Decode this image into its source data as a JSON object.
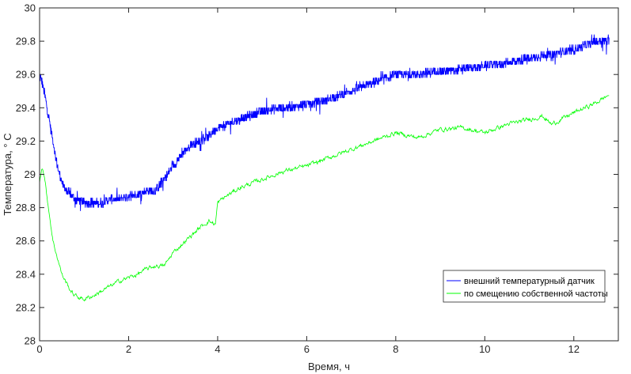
{
  "chart_data": {
    "type": "line",
    "xlabel": "Время, ч",
    "ylabel": "Температура, ° C",
    "xlim": [
      0,
      13
    ],
    "ylim": [
      28,
      30
    ],
    "xticks": [
      0,
      2,
      4,
      6,
      8,
      10,
      12
    ],
    "yticks": [
      28,
      28.2,
      28.4,
      28.6,
      28.8,
      29,
      29.2,
      29.4,
      29.6,
      29.8,
      30
    ],
    "xtick_labels": [
      "0",
      "2",
      "4",
      "6",
      "8",
      "10",
      "12"
    ],
    "ytick_labels": [
      "28",
      "28.2",
      "28.4",
      "28.6",
      "28.8",
      "29",
      "29.2",
      "29.4",
      "29.6",
      "29.8",
      "30"
    ],
    "grid": false,
    "legend_position": "bottom-right",
    "series": [
      {
        "name": "внешний температурный датчик",
        "color": "#0000ff",
        "x": [
          0,
          0.05,
          0.1,
          0.2,
          0.3,
          0.4,
          0.5,
          0.6,
          0.7,
          0.8,
          1.0,
          1.2,
          1.4,
          1.6,
          1.8,
          2.0,
          2.2,
          2.4,
          2.6,
          2.8,
          3.0,
          3.2,
          3.4,
          3.6,
          3.8,
          4.0,
          4.2,
          4.5,
          5.0,
          5.5,
          6.0,
          6.5,
          7.0,
          7.5,
          8.0,
          8.5,
          9.0,
          9.5,
          10.0,
          10.5,
          11.0,
          11.5,
          12.0,
          12.5,
          12.8
        ],
        "y": [
          29.6,
          29.56,
          29.5,
          29.35,
          29.2,
          29.05,
          28.95,
          28.9,
          28.88,
          28.85,
          28.83,
          28.83,
          28.83,
          28.85,
          28.85,
          28.87,
          28.88,
          28.9,
          28.9,
          28.97,
          29.05,
          29.12,
          29.18,
          29.2,
          29.23,
          29.28,
          29.3,
          29.33,
          29.38,
          29.4,
          29.42,
          29.45,
          29.5,
          29.55,
          29.6,
          29.6,
          29.62,
          29.63,
          29.65,
          29.67,
          29.7,
          29.72,
          29.75,
          29.8,
          29.8
        ]
      },
      {
        "name": "по смещению собственной частоты",
        "color": "#00ff00",
        "x": [
          0,
          0.05,
          0.1,
          0.2,
          0.3,
          0.4,
          0.5,
          0.6,
          0.7,
          0.8,
          1.0,
          1.2,
          1.4,
          1.6,
          1.8,
          2.0,
          2.2,
          2.4,
          2.6,
          2.8,
          3.0,
          3.2,
          3.4,
          3.6,
          3.8,
          3.95,
          4.0,
          4.2,
          4.5,
          5.0,
          5.5,
          6.0,
          6.5,
          7.0,
          7.5,
          8.0,
          8.5,
          9.0,
          9.5,
          10.0,
          10.5,
          11.0,
          11.3,
          11.5,
          12.0,
          12.5,
          12.8
        ],
        "y": [
          28.95,
          29.05,
          29.0,
          28.8,
          28.6,
          28.5,
          28.4,
          28.35,
          28.3,
          28.27,
          28.25,
          28.27,
          28.3,
          28.33,
          28.36,
          28.38,
          28.4,
          28.43,
          28.45,
          28.45,
          28.53,
          28.58,
          28.63,
          28.68,
          28.72,
          28.7,
          28.83,
          28.87,
          28.92,
          28.97,
          29.02,
          29.05,
          29.1,
          29.15,
          29.2,
          29.25,
          29.22,
          29.27,
          29.28,
          29.25,
          29.3,
          29.33,
          29.35,
          29.3,
          29.37,
          29.43,
          29.48
        ]
      }
    ]
  }
}
